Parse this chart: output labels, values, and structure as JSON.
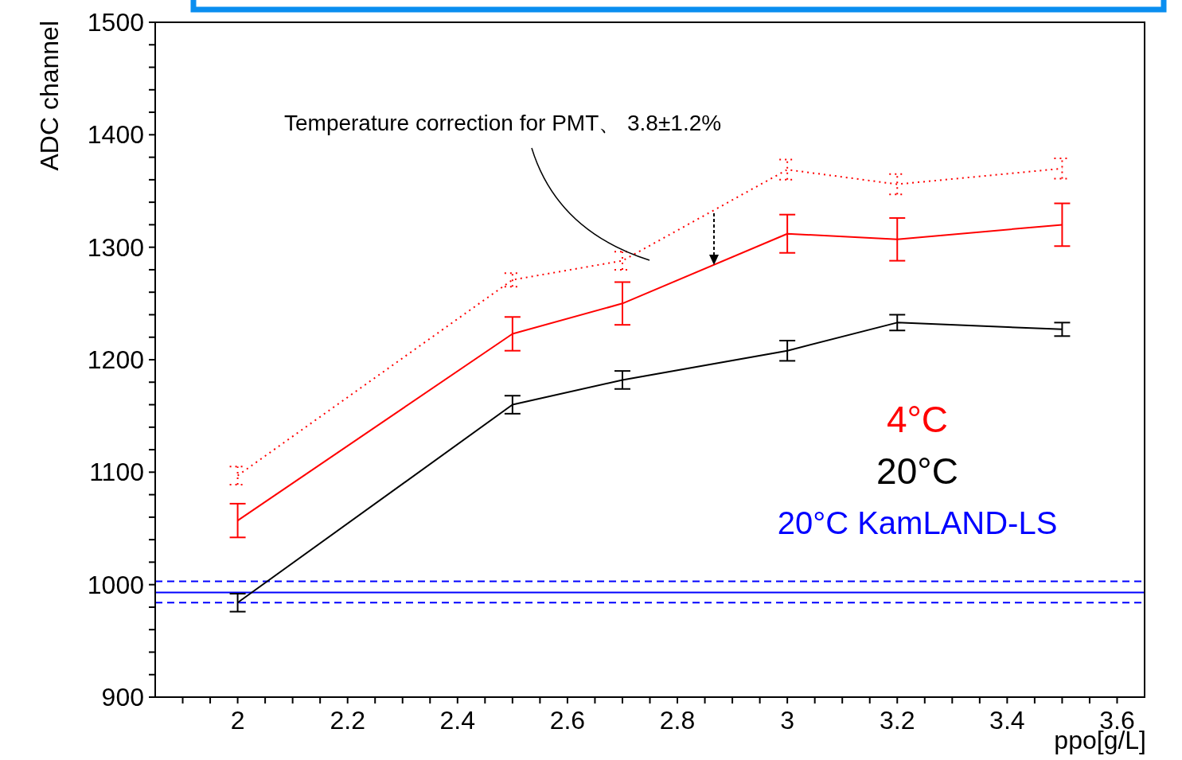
{
  "chart_data": {
    "type": "line",
    "xlabel": "ppo[g/L]",
    "ylabel": "ADC channel",
    "annotations": [
      "Temperature correction for PMT、 3.8±1.2%"
    ],
    "x": [
      2,
      2.5,
      2.7,
      3,
      3.2,
      3.5
    ],
    "series": [
      {
        "name": "4°C",
        "color": "#ff0000",
        "line_style": "solid",
        "values": [
          1057,
          1223,
          1250,
          1312,
          1307,
          1320
        ],
        "errors": [
          15,
          15,
          19,
          17,
          19,
          19
        ]
      },
      {
        "color": "#ff0000",
        "line_style": "dotted",
        "values": [
          1097,
          1271,
          1288,
          1369,
          1356,
          1370
        ],
        "errors": [
          8,
          6,
          8,
          9,
          9,
          9
        ]
      },
      {
        "name": "20°C",
        "color": "#000000",
        "line_style": "solid",
        "values": [
          984,
          1160,
          1182,
          1208,
          1233,
          1227
        ],
        "errors": [
          8,
          8,
          8,
          9,
          7,
          6
        ]
      }
    ],
    "ref_lines": [
      {
        "axis": "y",
        "value": 993,
        "label": "20°C KamLAND-LS",
        "color": "#0000ff",
        "line_style": "solid"
      },
      {
        "axis": "y",
        "value": 1003,
        "label": null,
        "color": "#0000ff",
        "line_style": "dashed"
      },
      {
        "axis": "y",
        "value": 984,
        "label": null,
        "color": "#0000ff",
        "line_style": "dashed"
      }
    ],
    "xlim": [
      1.85,
      3.65
    ],
    "xticks": [
      {
        "value": 1.9,
        "label": null
      },
      {
        "value": 1.95,
        "label": null
      },
      2,
      {
        "value": 2.05,
        "label": null
      },
      {
        "value": 2.1,
        "label": null
      },
      {
        "value": 2.15,
        "label": null
      },
      2.2,
      {
        "value": 2.25,
        "label": null
      },
      {
        "value": 2.3,
        "label": null
      },
      {
        "value": 2.35,
        "label": null
      },
      2.4,
      {
        "value": 2.45,
        "label": null
      },
      {
        "value": 2.5,
        "label": null
      },
      {
        "value": 2.55,
        "label": null
      },
      2.6,
      {
        "value": 2.65,
        "label": null
      },
      {
        "value": 2.7,
        "label": null
      },
      {
        "value": 2.75,
        "label": null
      },
      2.8,
      {
        "value": 2.85,
        "label": null
      },
      {
        "value": 2.9,
        "label": null
      },
      {
        "value": 2.95,
        "label": null
      },
      3,
      {
        "value": 3.05,
        "label": null
      },
      {
        "value": 3.1,
        "label": null
      },
      {
        "value": 3.15,
        "label": null
      },
      3.2,
      {
        "value": 3.25,
        "label": null
      },
      {
        "value": 3.3,
        "label": null
      },
      {
        "value": 3.35,
        "label": null
      },
      3.4,
      {
        "value": 3.45,
        "label": null
      },
      {
        "value": 3.5,
        "label": null
      },
      {
        "value": 3.55,
        "label": null
      },
      3.6
    ],
    "ylim": [
      900,
      1500
    ],
    "yticks": [
      900,
      {
        "value": 920,
        "label": null
      },
      {
        "value": 940,
        "label": null
      },
      {
        "value": 960,
        "label": null
      },
      {
        "value": 980,
        "label": null
      },
      1000,
      {
        "value": 1020,
        "label": null
      },
      {
        "value": 1040,
        "label": null
      },
      {
        "value": 1060,
        "label": null
      },
      {
        "value": 1080,
        "label": null
      },
      1100,
      {
        "value": 1120,
        "label": null
      },
      {
        "value": 1140,
        "label": null
      },
      {
        "value": 1160,
        "label": null
      },
      {
        "value": 1180,
        "label": null
      },
      1200,
      {
        "value": 1220,
        "label": null
      },
      {
        "value": 1240,
        "label": null
      },
      {
        "value": 1260,
        "label": null
      },
      {
        "value": 1280,
        "label": null
      },
      1300,
      {
        "value": 1320,
        "label": null
      },
      {
        "value": 1340,
        "label": null
      },
      {
        "value": 1360,
        "label": null
      },
      {
        "value": 1380,
        "label": null
      },
      1400,
      {
        "value": 1420,
        "label": null
      },
      {
        "value": 1440,
        "label": null
      },
      {
        "value": 1460,
        "label": null
      },
      {
        "value": 1480,
        "label": null
      },
      1500
    ],
    "grid": false,
    "legend": "right",
    "marker": "none"
  }
}
